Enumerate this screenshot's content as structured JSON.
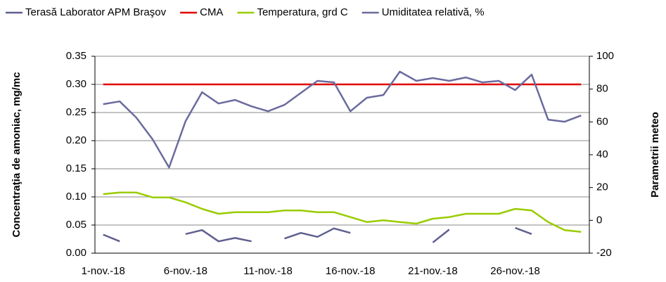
{
  "chart_data": {
    "type": "line",
    "y_label": "Concentraţia de amoniac, mg/mc",
    "y2_label": "Parametrii meteo",
    "categories": [
      "1-nov.-18",
      null,
      null,
      null,
      null,
      "6-nov.-18",
      null,
      null,
      null,
      null,
      "11-nov.-18",
      null,
      null,
      null,
      null,
      "16-nov.-18",
      null,
      null,
      null,
      null,
      "21-nov.-18",
      null,
      null,
      null,
      null,
      "26-nov.-18",
      null,
      null,
      null,
      null
    ],
    "ylim": [
      0,
      0.35
    ],
    "yticks": [
      {
        "value": 0,
        "label": "0.00"
      },
      0.05,
      {
        "value": 0.1,
        "label": "0.10"
      },
      0.15,
      {
        "value": 0.2,
        "label": "0.20"
      },
      0.25,
      {
        "value": 0.3,
        "label": "0.30"
      },
      0.35
    ],
    "y2lim": [
      -20,
      100
    ],
    "y2ticks": [
      -20,
      0,
      20,
      40,
      60,
      80,
      100
    ],
    "grid": true,
    "legend": "top",
    "series": [
      {
        "name": "Terasă Laborator APM Braşov",
        "color": "#5f5f8f",
        "values": [
          0.033,
          0.021,
          null,
          null,
          null,
          0.034,
          0.041,
          0.021,
          0.027,
          0.021,
          null,
          0.026,
          0.036,
          0.029,
          0.044,
          0.036,
          null,
          null,
          null,
          null,
          0.019,
          0.042,
          null,
          null,
          null,
          0.045,
          0.034,
          null,
          null,
          null
        ]
      },
      {
        "name": "CMA",
        "color": "#e00000",
        "values": [
          0.3,
          0.3,
          0.3,
          0.3,
          0.3,
          0.3,
          0.3,
          0.3,
          0.3,
          0.3,
          0.3,
          0.3,
          0.3,
          0.3,
          0.3,
          0.3,
          0.3,
          0.3,
          0.3,
          0.3,
          0.3,
          0.3,
          0.3,
          0.3,
          0.3,
          0.3,
          0.3,
          0.3,
          0.3,
          0.3
        ]
      },
      {
        "name": "Temperatura, grd C",
        "color": "#99cc00",
        "axis": "y2",
        "values": [
          16,
          17,
          17,
          14,
          14,
          11,
          7,
          4,
          5,
          5,
          5,
          6,
          6,
          5,
          5,
          2,
          -1,
          0,
          -1,
          -2,
          1,
          2,
          4,
          4,
          4,
          7,
          6,
          -1,
          -6,
          -7
        ]
      },
      {
        "name": "Umiditatea relativă, %",
        "color": "#6b6b9e",
        "axis": "y2",
        "values": [
          70.8,
          72.5,
          62.7,
          49.4,
          32.2,
          60.5,
          78.1,
          71.2,
          73.4,
          69.5,
          66.5,
          70.4,
          77.7,
          85,
          84.1,
          66.5,
          74.7,
          76.4,
          90.6,
          85,
          86.7,
          85,
          87.1,
          84.1,
          85,
          79.4,
          88.8,
          61.4,
          60.1,
          63.9
        ]
      }
    ]
  }
}
